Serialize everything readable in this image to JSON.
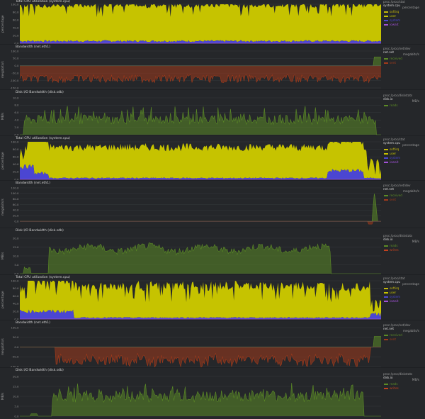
{
  "colors": {
    "background": "#25272a",
    "grid": "#3a3d41",
    "softirq": "#c3b70b",
    "system": "#c6c300",
    "user": "#4b46d2",
    "iowait": "#a052d6",
    "received": "#5b8a26",
    "sent": "#a13a1b",
    "reads": "#5b8a26",
    "writes": "#c2421f"
  },
  "chart_data": [
    {
      "type": "area",
      "title": "Total CPU utilization (system.cpu)",
      "ylabel": "percentage",
      "ylim": [
        0,
        100
      ],
      "yticks": [
        "100.0",
        "80.0",
        "60.0",
        "40.0",
        "20.0",
        "0.0"
      ],
      "context": "proc:/proc/stat",
      "chart_id": "system.cpu",
      "units": "percentage",
      "legend": [
        {
          "name": "softirq",
          "color": "#c3b70b"
        },
        {
          "name": "user",
          "color": "#c6c300"
        },
        {
          "name": "system",
          "color": "#4b46d2"
        },
        {
          "name": "iowait",
          "color": "#a052d6"
        }
      ],
      "series": [
        {
          "name": "user",
          "profile": "cpu1_user"
        },
        {
          "name": "system",
          "profile": "cpu1_system"
        }
      ]
    },
    {
      "type": "area",
      "title": "Bandwidth (net.eth1)",
      "ylabel": "megabits/s",
      "ylim": [
        -150,
        100
      ],
      "yticks": [
        "100.0",
        "50.0",
        "0.0",
        "-50.0",
        "-100.0",
        "-150.0"
      ],
      "context": "proc:/proc/net/dev",
      "chart_id": "net.net",
      "units": "megabits/s",
      "legend": [
        {
          "name": "received",
          "color": "#5b8a26"
        },
        {
          "name": "sent",
          "color": "#a13a1b"
        }
      ],
      "series": [
        {
          "name": "received",
          "profile": "net1_received"
        },
        {
          "name": "sent",
          "profile": "net1_sent"
        }
      ]
    },
    {
      "type": "area",
      "title": "Disk I/O Bandwidth (disk.sdb)",
      "ylabel": "MB/s",
      "ylim": [
        0,
        10
      ],
      "yticks": [
        "10.0",
        "8.0",
        "6.0",
        "4.0",
        "2.0",
        "0.0"
      ],
      "context": "proc:/proc/diskstats",
      "chart_id": "disk.io",
      "units": "MB/s",
      "legend": [
        {
          "name": "reads",
          "color": "#5b8a26"
        }
      ],
      "series": [
        {
          "name": "reads",
          "profile": "disk1_reads"
        }
      ]
    },
    {
      "type": "area",
      "title": "Total CPU utilization (system.cpu)",
      "ylabel": "percentage",
      "ylim": [
        0,
        100
      ],
      "yticks": [
        "100.0",
        "80.0",
        "60.0",
        "40.0",
        "20.0",
        "0.0"
      ],
      "context": "proc:/proc/stat",
      "chart_id": "system.cpu",
      "units": "percentage",
      "legend": [
        {
          "name": "softirq",
          "color": "#c3b70b"
        },
        {
          "name": "user",
          "color": "#c6c300"
        },
        {
          "name": "system",
          "color": "#4b46d2"
        },
        {
          "name": "iowait",
          "color": "#a052d6"
        }
      ],
      "series": [
        {
          "name": "user",
          "profile": "cpu2_user"
        },
        {
          "name": "system",
          "profile": "cpu2_system"
        }
      ]
    },
    {
      "type": "area",
      "title": "Bandwidth (net.eth1)",
      "ylabel": "megabits/s",
      "ylim": [
        -20,
        120
      ],
      "yticks": [
        "120.0",
        "100.0",
        "80.0",
        "60.0",
        "40.0",
        "20.0",
        "0.0"
      ],
      "context": "proc:/proc/net/dev",
      "chart_id": "net.net",
      "units": "megabits/s",
      "legend": [
        {
          "name": "received",
          "color": "#5b8a26"
        },
        {
          "name": "sent",
          "color": "#a13a1b"
        }
      ],
      "series": [
        {
          "name": "received",
          "profile": "net2_received"
        },
        {
          "name": "sent",
          "profile": "net2_sent"
        }
      ]
    },
    {
      "type": "area",
      "title": "Disk I/O Bandwidth (disk.sdb)",
      "ylabel": "MB/s",
      "ylim": [
        0,
        20
      ],
      "yticks": [
        "20.0",
        "15.0",
        "10.0",
        "5.0",
        "0.0"
      ],
      "context": "proc:/proc/diskstats",
      "chart_id": "disk.io",
      "units": "MB/s",
      "legend": [
        {
          "name": "reads",
          "color": "#5b8a26"
        },
        {
          "name": "writes",
          "color": "#c2421f"
        }
      ],
      "series": [
        {
          "name": "reads",
          "profile": "disk2_reads"
        }
      ]
    },
    {
      "type": "area",
      "title": "Total CPU utilization (system.cpu)",
      "ylabel": "percentage",
      "ylim": [
        0,
        100
      ],
      "yticks": [
        "100.0",
        "80.0",
        "60.0",
        "40.0",
        "20.0",
        "0.0"
      ],
      "context": "proc:/proc/stat",
      "chart_id": "system.cpu",
      "units": "percentage",
      "legend": [
        {
          "name": "softirq",
          "color": "#c3b70b"
        },
        {
          "name": "user",
          "color": "#c6c300"
        },
        {
          "name": "system",
          "color": "#4b46d2"
        },
        {
          "name": "iowait",
          "color": "#a052d6"
        }
      ],
      "series": [
        {
          "name": "user",
          "profile": "cpu3_user"
        },
        {
          "name": "system",
          "profile": "cpu3_system"
        }
      ]
    },
    {
      "type": "area",
      "title": "Bandwidth (net.eth1)",
      "ylabel": "megabits/s",
      "ylim": [
        -100,
        100
      ],
      "yticks": [
        "100.0",
        "50.0",
        "0.0",
        "-50.0",
        "-100.0"
      ],
      "context": "proc:/proc/net/dev",
      "chart_id": "net.net",
      "units": "megabits/s",
      "legend": [
        {
          "name": "received",
          "color": "#5b8a26"
        },
        {
          "name": "sent",
          "color": "#a13a1b"
        }
      ],
      "series": [
        {
          "name": "received",
          "profile": "net3_received"
        },
        {
          "name": "sent",
          "profile": "net3_sent"
        }
      ]
    },
    {
      "type": "area",
      "title": "Disk I/O Bandwidth (disk.sdb)",
      "ylabel": "MB/s",
      "ylim": [
        0,
        20
      ],
      "yticks": [
        "20.0",
        "15.0",
        "10.0",
        "5.0",
        "0.0"
      ],
      "context": "proc:/proc/diskstats",
      "chart_id": "disk.io",
      "units": "MB/s",
      "legend": [
        {
          "name": "reads",
          "color": "#5b8a26"
        },
        {
          "name": "writes",
          "color": "#c2421f"
        }
      ],
      "series": [
        {
          "name": "reads",
          "profile": "disk3_reads"
        }
      ]
    }
  ]
}
